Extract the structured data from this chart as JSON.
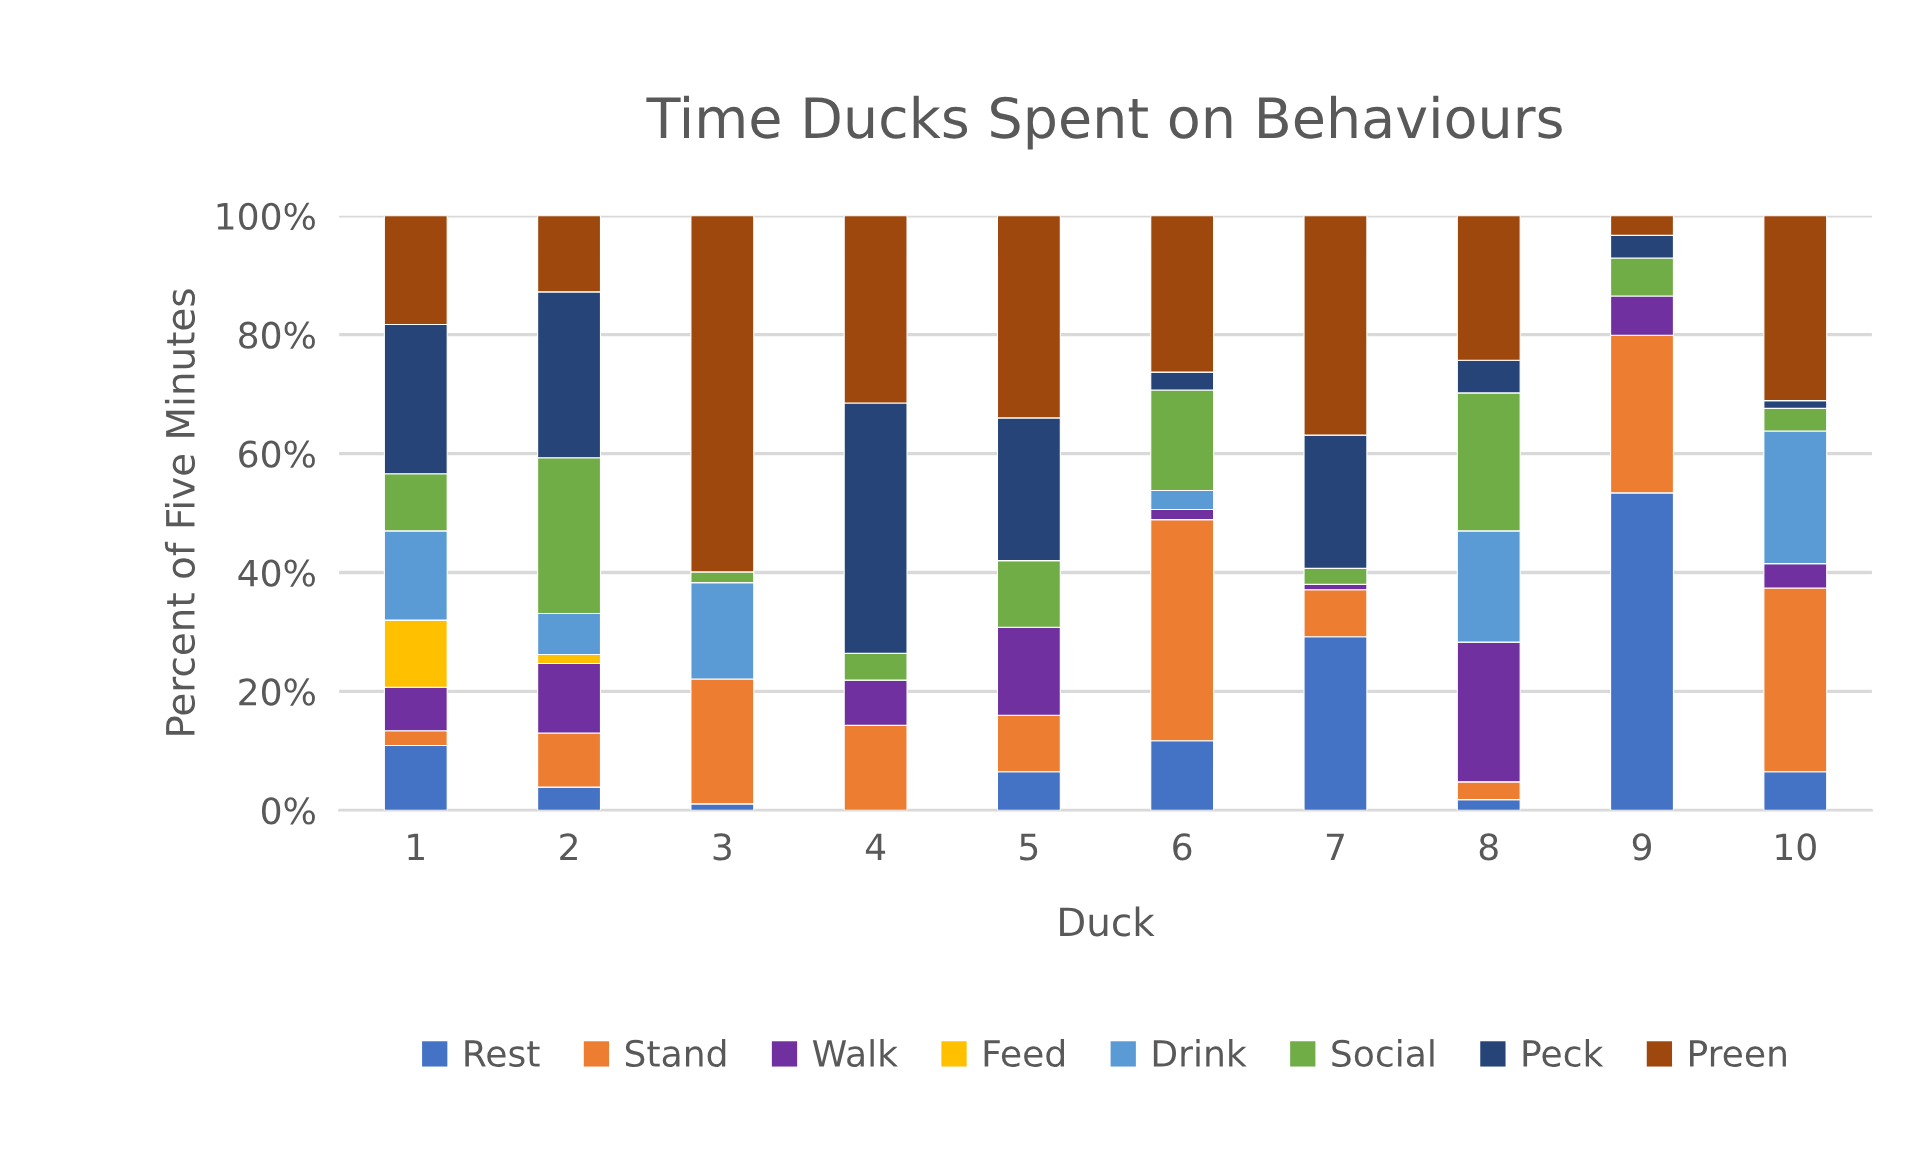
{
  "chart_data": {
    "type": "bar",
    "stacked": true,
    "title": "Time Ducks Spent on Behaviours",
    "xlabel": "Duck",
    "ylabel": "Percent of Five Minutes",
    "categories": [
      "1",
      "2",
      "3",
      "4",
      "5",
      "6",
      "7",
      "8",
      "9",
      "10"
    ],
    "series": [
      {
        "name": "Rest",
        "color": "#4472c4",
        "values": [
          10.9,
          3.9,
          1.1,
          0,
          6.5,
          11.7,
          29.2,
          1.8,
          53.4,
          6.5
        ]
      },
      {
        "name": "Stand",
        "color": "#ed7d31",
        "values": [
          2.5,
          9.1,
          21.0,
          14.3,
          9.5,
          37.2,
          7.9,
          3.0,
          26.5,
          30.9
        ]
      },
      {
        "name": "Walk",
        "color": "#7030a0",
        "values": [
          7.3,
          11.7,
          0,
          7.6,
          14.8,
          1.7,
          0.9,
          23.5,
          6.6,
          4.1
        ]
      },
      {
        "name": "Feed",
        "color": "#ffc000",
        "values": [
          11.3,
          1.5,
          0,
          0,
          0,
          0,
          0,
          0,
          0,
          0
        ]
      },
      {
        "name": "Drink",
        "color": "#5b9bd5",
        "values": [
          15.0,
          6.9,
          16.2,
          0,
          0,
          3.2,
          0,
          18.7,
          0,
          22.3
        ]
      },
      {
        "name": "Social",
        "color": "#70ad47",
        "values": [
          9.6,
          26.2,
          1.8,
          4.5,
          11.2,
          16.9,
          2.7,
          23.2,
          6.4,
          3.8
        ]
      },
      {
        "name": "Peck",
        "color": "#264478",
        "values": [
          25.1,
          27.9,
          0,
          42.1,
          24.0,
          3.0,
          22.4,
          5.5,
          3.8,
          1.3
        ]
      },
      {
        "name": "Preen",
        "color": "#9e480e",
        "values": [
          18.3,
          12.8,
          59.9,
          31.5,
          34.0,
          26.3,
          36.9,
          24.3,
          3.3,
          31.1
        ]
      }
    ],
    "ylim": [
      0,
      100
    ],
    "yticks": [
      {
        "value": 0,
        "label": "0%"
      },
      {
        "value": 20,
        "label": "20%"
      },
      {
        "value": 40,
        "label": "40%"
      },
      {
        "value": 60,
        "label": "60%"
      },
      {
        "value": 80,
        "label": "80%"
      },
      {
        "value": 100,
        "label": "100%"
      }
    ],
    "grid": "y",
    "legend": "bottom"
  }
}
